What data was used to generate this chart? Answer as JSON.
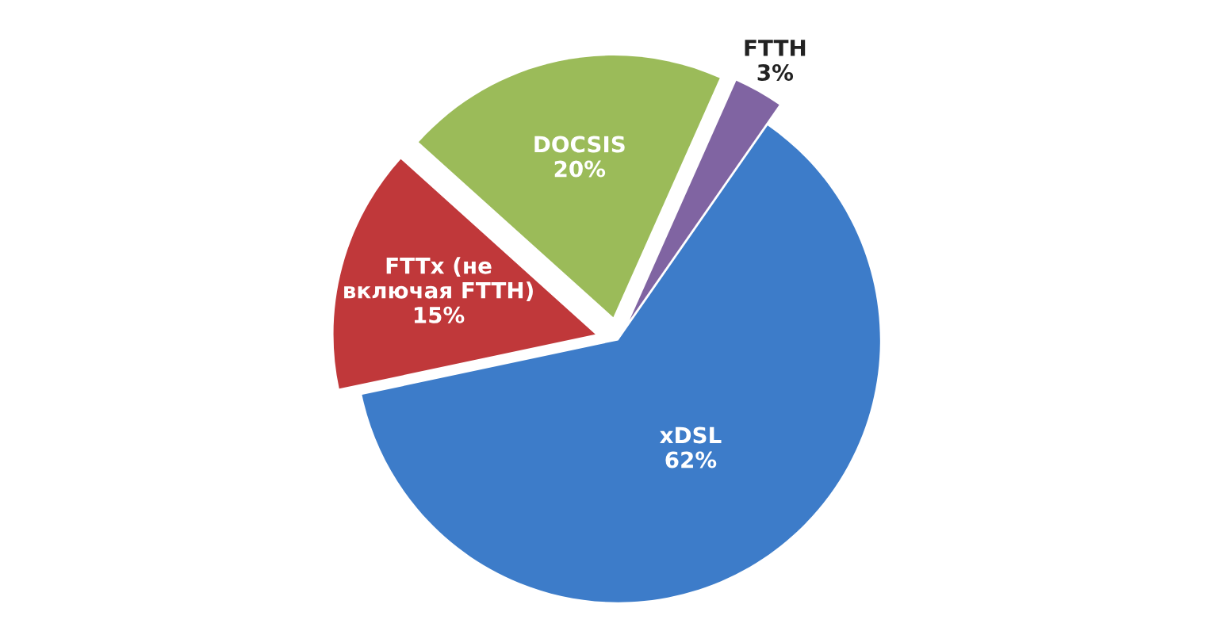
{
  "chart_data": {
    "type": "pie",
    "categories": [
      "FTTH",
      "xDSL",
      "FTTx (не\nвключая FTTH)",
      "DOCSIS"
    ],
    "values": [
      3,
      62,
      15,
      20
    ],
    "colors": [
      "#8064a2",
      "#3d7cc9",
      "#c0383a",
      "#9bbb59"
    ],
    "value_labels": [
      "3%",
      "62%",
      "15%",
      "20%"
    ]
  }
}
